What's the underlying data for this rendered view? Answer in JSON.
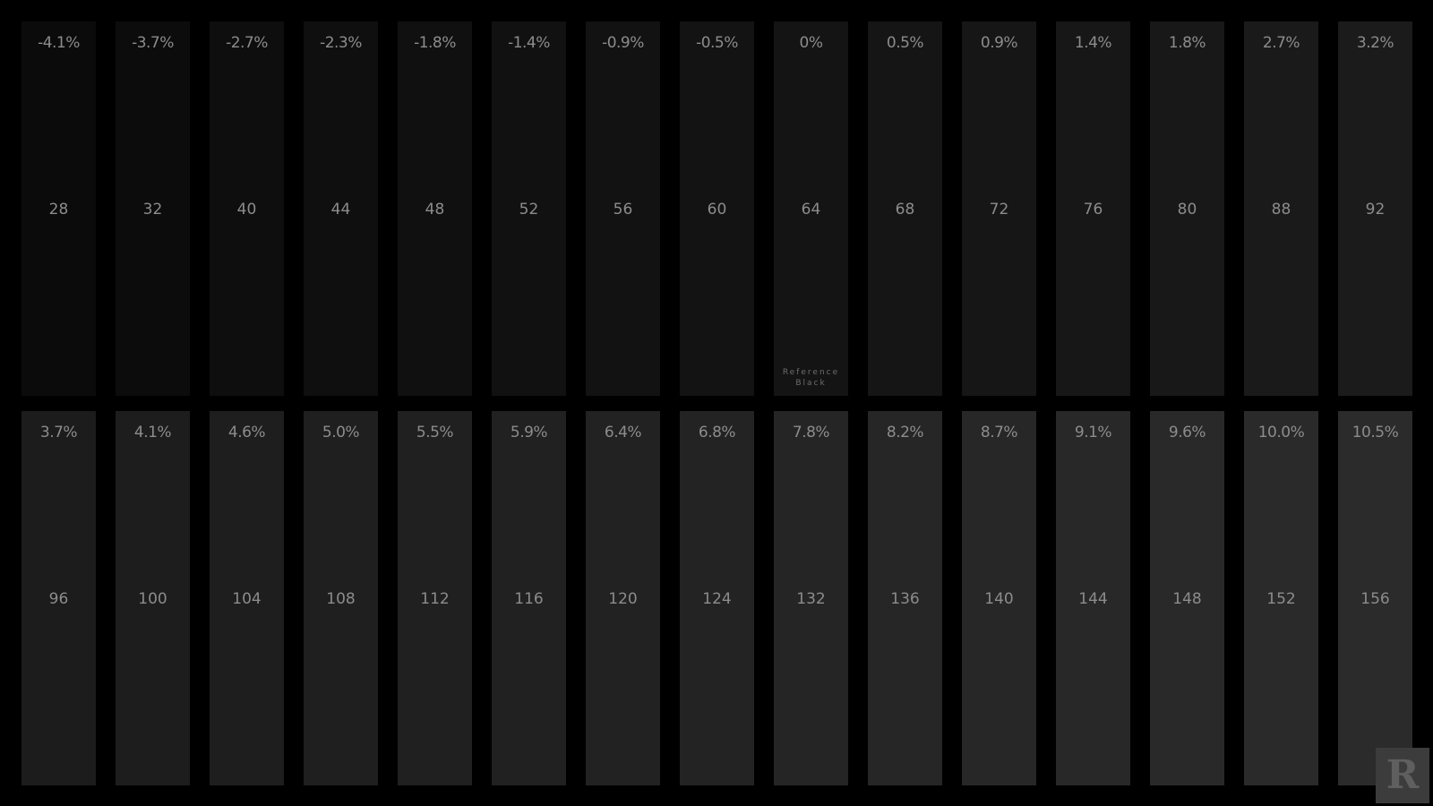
{
  "rows": [
    {
      "patches": [
        {
          "percent": "-4.1%",
          "code": "28"
        },
        {
          "percent": "-3.7%",
          "code": "32"
        },
        {
          "percent": "-2.7%",
          "code": "40"
        },
        {
          "percent": "-2.3%",
          "code": "44"
        },
        {
          "percent": "-1.8%",
          "code": "48"
        },
        {
          "percent": "-1.4%",
          "code": "52"
        },
        {
          "percent": "-0.9%",
          "code": "56"
        },
        {
          "percent": "-0.5%",
          "code": "60"
        },
        {
          "percent": "0%",
          "code": "64",
          "note_line1": "Reference",
          "note_line2": "Black"
        },
        {
          "percent": "0.5%",
          "code": "68"
        },
        {
          "percent": "0.9%",
          "code": "72"
        },
        {
          "percent": "1.4%",
          "code": "76"
        },
        {
          "percent": "1.8%",
          "code": "80"
        },
        {
          "percent": "2.7%",
          "code": "88"
        },
        {
          "percent": "3.2%",
          "code": "92"
        }
      ]
    },
    {
      "patches": [
        {
          "percent": "3.7%",
          "code": "96"
        },
        {
          "percent": "4.1%",
          "code": "100"
        },
        {
          "percent": "4.6%",
          "code": "104"
        },
        {
          "percent": "5.0%",
          "code": "108"
        },
        {
          "percent": "5.5%",
          "code": "112"
        },
        {
          "percent": "5.9%",
          "code": "116"
        },
        {
          "percent": "6.4%",
          "code": "120"
        },
        {
          "percent": "6.8%",
          "code": "124"
        },
        {
          "percent": "7.8%",
          "code": "132"
        },
        {
          "percent": "8.2%",
          "code": "136"
        },
        {
          "percent": "8.7%",
          "code": "140"
        },
        {
          "percent": "9.1%",
          "code": "144"
        },
        {
          "percent": "9.6%",
          "code": "148"
        },
        {
          "percent": "10.0%",
          "code": "152"
        },
        {
          "percent": "10.5%",
          "code": "156"
        }
      ]
    }
  ],
  "logo": {
    "letter": "R"
  },
  "colors": {
    "background": "#000000",
    "text": "#8c8c8c",
    "logo_bg": "#3c3c3c"
  }
}
